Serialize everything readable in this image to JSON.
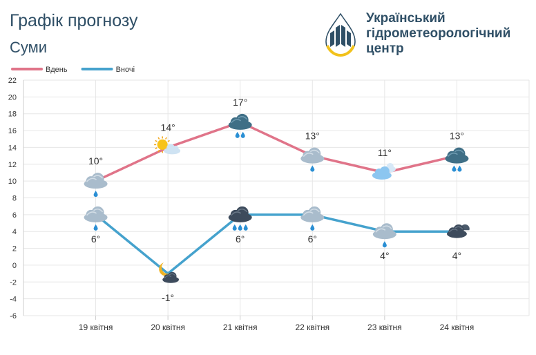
{
  "header": {
    "title": "Графік прогнозу",
    "city": "Суми",
    "org_lines": [
      "Український",
      "гідрометеорологічний",
      "центр"
    ]
  },
  "colors": {
    "day": "#e07489",
    "night": "#45a2cd",
    "grid": "#e6e6e6",
    "text": "#2f4f66"
  },
  "chart_data": {
    "type": "line",
    "categories": [
      "19 квітня",
      "20 квітня",
      "21 квітня",
      "22 квітня",
      "23 квітня",
      "24 квітня"
    ],
    "ylim": [
      -6,
      22
    ],
    "yticks": [
      -6,
      -4,
      -2,
      0,
      2,
      4,
      6,
      8,
      10,
      12,
      14,
      16,
      18,
      20,
      22
    ],
    "grid": true,
    "legend_position": "top-left",
    "series": [
      {
        "name": "Вдень",
        "values": [
          10,
          14,
          17,
          13,
          11,
          13
        ],
        "labels": [
          "10°",
          "14°",
          "17°",
          "13°",
          "11°",
          "13°"
        ],
        "icons": [
          "cloud-rain-icon",
          "sun-cloud-icon",
          "storm-cloud-rain-icon",
          "cloud-rain-icon",
          "light-cloud-icon",
          "storm-cloud-rain-icon"
        ]
      },
      {
        "name": "Вночі",
        "values": [
          6,
          -1,
          6,
          6,
          4,
          4
        ],
        "labels": [
          "6°",
          "-1°",
          "6°",
          "6°",
          "4°",
          "4°"
        ],
        "icons": [
          "cloud-rain-icon",
          "moon-cloud-icon",
          "dark-cloud-rain-icon",
          "cloud-rain-icon",
          "cloud-rain-icon",
          "dark-cloud-icon"
        ]
      }
    ]
  }
}
